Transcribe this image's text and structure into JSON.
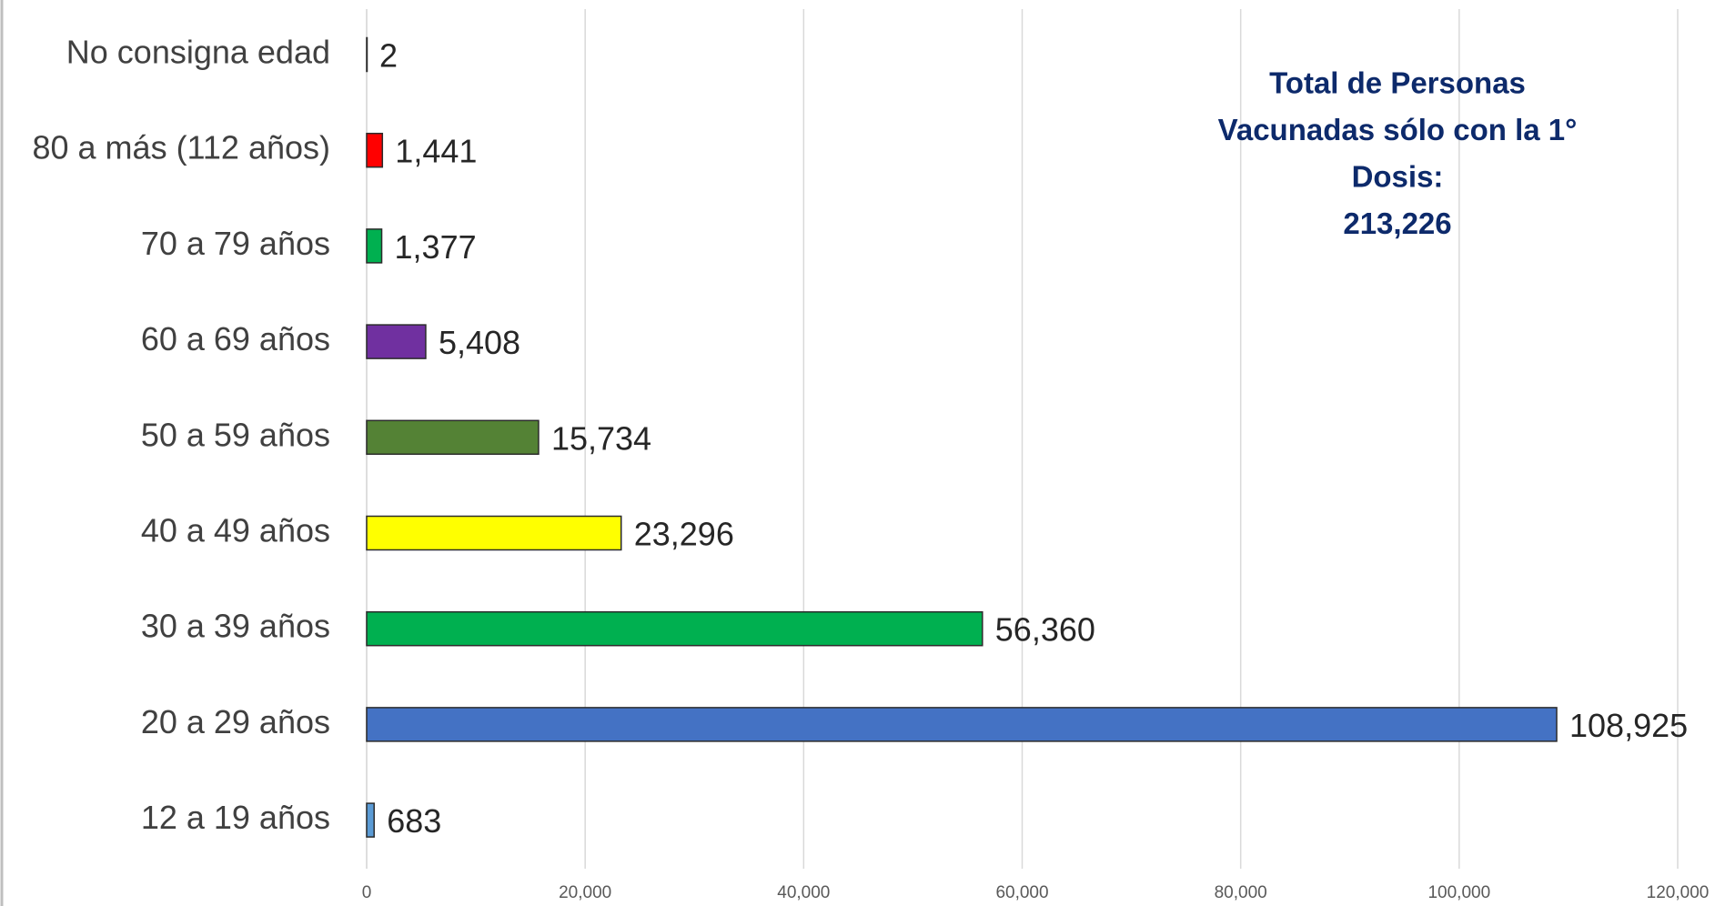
{
  "chart_data": {
    "type": "hbar",
    "annotation": [
      "Total de Personas",
      "Vacunadas sólo con la 1°",
      "Dosis:",
      "213,226"
    ],
    "categories": [
      "No consigna edad",
      "80 a más (112 años)",
      "70 a 79 años",
      "60 a 69 años",
      "50 a 59 años",
      "40 a 49 años",
      "30 a 39 años",
      "20 a 29 años",
      "12 a 19 años"
    ],
    "values": [
      2,
      1441,
      1377,
      5408,
      15734,
      23296,
      56360,
      108925,
      683
    ],
    "value_labels": [
      "2",
      "1,441",
      "1,377",
      "5,408",
      "15,734",
      "23,296",
      "56,360",
      "108,925",
      "683"
    ],
    "colors": [
      "#4472c4",
      "#ff0000",
      "#00b050",
      "#7030a0",
      "#548235",
      "#ffff00",
      "#00b050",
      "#4472c4",
      "#5b9bd5"
    ],
    "xlim": [
      0,
      120000
    ],
    "xticks": [
      0,
      {
        "value": 20000,
        "label": "20,000"
      },
      {
        "value": 40000,
        "label": "40,000"
      },
      {
        "value": 60000,
        "label": "60,000"
      },
      {
        "value": 80000,
        "label": "80,000"
      },
      {
        "value": 100000,
        "label": "100,000"
      },
      {
        "value": 120000,
        "label": "120,000"
      }
    ],
    "grid": true
  }
}
